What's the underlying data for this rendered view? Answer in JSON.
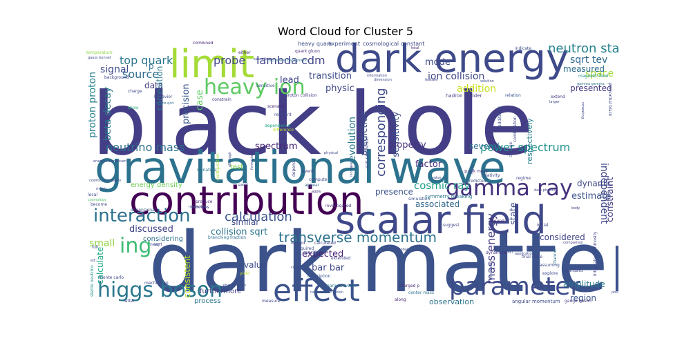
{
  "title": "Word Cloud for Cluster 5",
  "words": [
    {
      "text": "black hole",
      "color": "#433e85"
    },
    {
      "text": "dark matter",
      "color": "#3b528b"
    },
    {
      "text": "gravitational wave",
      "color": "#2c728e"
    },
    {
      "text": "dark energy",
      "color": "#3e4a89"
    },
    {
      "text": "contribution",
      "color": "#440154"
    },
    {
      "text": "scalar field",
      "color": "#3f4889"
    },
    {
      "text": "limit",
      "color": "#a5db36"
    },
    {
      "text": "effect",
      "color": "#3b528b"
    },
    {
      "text": "parameter",
      "color": "#3e4c8a"
    },
    {
      "text": "gamma ray",
      "color": "#46327e"
    },
    {
      "text": "higgs boson",
      "color": "#2a788e"
    },
    {
      "text": "heavy ion",
      "color": "#5ec962"
    },
    {
      "text": "interaction",
      "color": "#2c718e"
    },
    {
      "text": "ing",
      "color": "#3dbc74"
    },
    {
      "text": "corresponding",
      "color": "#3e4989"
    },
    {
      "text": "neutron star",
      "color": "#26828e"
    },
    {
      "text": "transverse momentum",
      "color": "#2c728e"
    },
    {
      "text": "calculation",
      "color": "#3a548c"
    },
    {
      "text": "lambda cdm",
      "color": "#404688"
    },
    {
      "text": "top quark",
      "color": "#2a768e"
    },
    {
      "text": "probe",
      "color": "#404588"
    },
    {
      "text": "source",
      "color": "#2f6c8e"
    },
    {
      "text": "mass energy",
      "color": "#433d84"
    },
    {
      "text": "neutrino mass",
      "color": "#2d708e"
    },
    {
      "text": "power spectrum",
      "color": "#20928c"
    },
    {
      "text": "cosmic ray",
      "color": "#1f9e89"
    },
    {
      "text": "signal",
      "color": "#3e4c8a"
    },
    {
      "text": "proton proton",
      "color": "#26828e"
    },
    {
      "text": "beta decay",
      "color": "#2a778e"
    },
    {
      "text": "independent",
      "color": "#3f4788"
    },
    {
      "text": "sqrt tev",
      "color": "#31688e"
    },
    {
      "text": "space",
      "color": "#a0da39"
    },
    {
      "text": "measured",
      "color": "#2e6d8e"
    },
    {
      "text": "ion collision",
      "color": "#3f4788"
    },
    {
      "text": "addition",
      "color": "#c8e020"
    },
    {
      "text": "presented",
      "color": "#453781"
    },
    {
      "text": "sensitivity",
      "color": "#3c508b"
    },
    {
      "text": "prediction",
      "color": "#3b518b"
    },
    {
      "text": "evolution",
      "color": "#29798e"
    },
    {
      "text": "transition",
      "color": "#3e4c8a"
    },
    {
      "text": "physic",
      "color": "#3e4989"
    },
    {
      "text": "lead",
      "color": "#414487"
    },
    {
      "text": "mode",
      "color": "#3f4889"
    },
    {
      "text": "p",
      "color": "#2d708e"
    },
    {
      "text": "data",
      "color": "#433e85"
    },
    {
      "text": "precision",
      "color": "#38598c"
    },
    {
      "text": "case",
      "color": "#5ec962"
    },
    {
      "text": "correlation",
      "color": "#2a788e"
    },
    {
      "text": "state",
      "color": "#3e4c8a"
    },
    {
      "text": "respectively",
      "color": "#27808e"
    },
    {
      "text": "constraint",
      "color": "#433d84"
    },
    {
      "text": "estimate",
      "color": "#3b528b"
    },
    {
      "text": "dynamic",
      "color": "#3e4a89"
    },
    {
      "text": "factor",
      "color": "#472d7b"
    },
    {
      "text": "property",
      "color": "#46327e"
    },
    {
      "text": "several",
      "color": "#2d718e"
    },
    {
      "text": "spectrum",
      "color": "#482878"
    },
    {
      "text": "presence",
      "color": "#3a538b"
    },
    {
      "text": "associated",
      "color": "#31688e"
    },
    {
      "text": "collision sqrt",
      "color": "#2c738e"
    },
    {
      "text": "similar",
      "color": "#3e4a89"
    },
    {
      "text": "discussed",
      "color": "#414287"
    },
    {
      "text": "small",
      "color": "#90d743"
    },
    {
      "text": "calculate",
      "color": "#22a884"
    },
    {
      "text": "consistent",
      "color": "#bddf26"
    },
    {
      "text": "expected",
      "color": "#482173"
    },
    {
      "text": "bar bar",
      "color": "#3f4788"
    },
    {
      "text": "value",
      "color": "#3e4989"
    },
    {
      "text": "considered",
      "color": "#414487"
    },
    {
      "text": "amplitude",
      "color": "#2a788e"
    },
    {
      "text": "region",
      "color": "#3a548c"
    },
    {
      "text": "observation",
      "color": "#2c728e"
    },
    {
      "text": "furthermore",
      "color": "#433e85"
    },
    {
      "text": "process",
      "color": "#2a788e"
    },
    {
      "text": "considering",
      "color": "#2e6f8e"
    },
    {
      "text": "energy density",
      "color": "#6ece58"
    },
    {
      "text": "test",
      "color": "#84d44b"
    },
    {
      "text": "combined",
      "color": "#482475"
    },
    {
      "text": "heavy quark",
      "color": "#3c508b"
    },
    {
      "text": "experiment",
      "color": "#3e4c8a"
    },
    {
      "text": "cosmological constant",
      "color": "#3f4889"
    },
    {
      "text": "total",
      "color": "#482878"
    },
    {
      "text": "indicate",
      "color": "#3b528b"
    },
    {
      "text": "quark gluon",
      "color": "#472d7b"
    },
    {
      "text": "temperature",
      "color": "#8fd744"
    },
    {
      "text": "gauss bonnet",
      "color": "#3e4a89"
    },
    {
      "text": "background",
      "color": "#404688"
    },
    {
      "text": "charge",
      "color": "#3f4788"
    },
    {
      "text": "show",
      "color": "#35b779"
    },
    {
      "text": "behavior",
      "color": "#3e4989"
    },
    {
      "text": "lattice qcd",
      "color": "#2e6e8e"
    },
    {
      "text": "microwave background",
      "color": "#2d718e"
    },
    {
      "text": "sensitive",
      "color": "#3b528b"
    },
    {
      "text": "constrain",
      "color": "#453781"
    },
    {
      "text": "scenario",
      "color": "#482677"
    },
    {
      "text": "relevant",
      "color": "#3f4788"
    },
    {
      "text": "dependence",
      "color": "#20a386"
    },
    {
      "text": "difference",
      "color": "#bddf26"
    },
    {
      "text": "hadron collider",
      "color": "#443983"
    },
    {
      "text": "relation",
      "color": "#3a548c"
    },
    {
      "text": "extend",
      "color": "#433e85"
    },
    {
      "text": "solution",
      "color": "#3e4c8a"
    },
    {
      "text": "feature",
      "color": "#404588"
    },
    {
      "text": "magnetic field",
      "color": "#21918c"
    },
    {
      "text": "gamma gamma",
      "color": "#2c738e"
    },
    {
      "text": "signature",
      "color": "#2c728e"
    },
    {
      "text": "event",
      "color": "#443a83"
    },
    {
      "text": "compute",
      "color": "#3e4a89"
    },
    {
      "text": "appear",
      "color": "#31688e"
    },
    {
      "text": "quark mass",
      "color": "#46327e"
    },
    {
      "text": "predicted",
      "color": "#3b528b"
    },
    {
      "text": "produce",
      "color": "#482878"
    },
    {
      "text": "provides",
      "color": "#3f4788"
    },
    {
      "text": "investigated",
      "color": "#46327e"
    },
    {
      "text": "simulation",
      "color": "#3b528b"
    },
    {
      "text": "symmetry breaking",
      "color": "#2a788e"
    },
    {
      "text": "initial",
      "color": "#404688"
    },
    {
      "text": "local",
      "color": "#3f4788"
    },
    {
      "text": "cosmology",
      "color": "#4ac16d"
    },
    {
      "text": "become",
      "color": "#3e4a89"
    },
    {
      "text": "dimensional",
      "color": "#3a548c"
    },
    {
      "text": "relativistic",
      "color": "#3f4788"
    },
    {
      "text": "deined",
      "color": "#414487"
    },
    {
      "text": "required",
      "color": "#3e4c8a"
    },
    {
      "text": "suggest",
      "color": "#3f4788"
    },
    {
      "text": "bound",
      "color": "#482475"
    },
    {
      "text": "full",
      "color": "#3e4a89"
    },
    {
      "text": "near",
      "color": "#3a548c"
    },
    {
      "text": "calculated",
      "color": "#404588"
    },
    {
      "text": "branching fraction",
      "color": "#2e6d8e"
    },
    {
      "text": "specific",
      "color": "#3e4989"
    },
    {
      "text": "extended",
      "color": "#3f4788"
    },
    {
      "text": "dynamical",
      "color": "#46327e"
    },
    {
      "text": "final state",
      "color": "#404588"
    },
    {
      "text": "assuming",
      "color": "#3e4c8a"
    },
    {
      "text": "explore",
      "color": "#3e4a89"
    },
    {
      "text": "monte carlo",
      "color": "#3e4989"
    },
    {
      "text": "mechanism",
      "color": "#3f4788"
    },
    {
      "text": "description",
      "color": "#3a548c"
    },
    {
      "text": "early universe",
      "color": "#2a788e"
    },
    {
      "text": "charged p",
      "color": "#472d7b"
    },
    {
      "text": "center mass",
      "color": "#2c728e"
    },
    {
      "text": "along",
      "color": "#482878"
    },
    {
      "text": "measure",
      "color": "#3f4788"
    },
    {
      "text": "angular momentum",
      "color": "#3e4c8a"
    },
    {
      "text": "gauge boson",
      "color": "#443983"
    },
    {
      "text": "channel",
      "color": "#2c738e"
    },
    {
      "text": "standard",
      "color": "#3f4788"
    },
    {
      "text": "integrated luminosity",
      "color": "#414487"
    },
    {
      "text": "possibility",
      "color": "#3e4a89"
    },
    {
      "text": "latter",
      "color": "#3f4788"
    },
    {
      "text": "yield",
      "color": "#bddf26"
    },
    {
      "text": "size",
      "color": "#3e4989"
    },
    {
      "text": "sterile neutrino",
      "color": "#21918c"
    },
    {
      "text": "global",
      "color": "#3e4989"
    },
    {
      "text": "phenomenon",
      "color": "#3f4788"
    },
    {
      "text": "neutrino oscillation",
      "color": "#3a548c"
    },
    {
      "text": "comparison",
      "color": "#433e85"
    },
    {
      "text": "exist",
      "color": "#3e4a89"
    },
    {
      "text": "configuration",
      "color": "#9fda3a"
    },
    {
      "text": "depend",
      "color": "#3f4788"
    },
    {
      "text": "apply",
      "color": "#472d7b"
    },
    {
      "text": "focus",
      "color": "#3a548c"
    },
    {
      "text": "relativity",
      "color": "#3e4c8a"
    },
    {
      "text": "change",
      "color": "#3f4788"
    },
    {
      "text": "combination",
      "color": "#404588"
    },
    {
      "text": "additional",
      "color": "#3e4989"
    },
    {
      "text": "regime",
      "color": "#3f4788"
    },
    {
      "text": "although",
      "color": "#3e4a89"
    },
    {
      "text": "formation",
      "color": "#3f4788"
    },
    {
      "text": "increase",
      "color": "#3f4788"
    },
    {
      "text": "pair production",
      "color": "#3e4a89"
    },
    {
      "text": "either",
      "color": "#482878"
    },
    {
      "text": "spacetime",
      "color": "#3f4788"
    },
    {
      "text": "dimension",
      "color": "#3e4989"
    },
    {
      "text": "information",
      "color": "#3f4788"
    },
    {
      "text": "proton collision",
      "color": "#433e85"
    },
    {
      "text": "larger",
      "color": "#3e4a89"
    },
    {
      "text": "body",
      "color": "#3f4788"
    },
    {
      "text": "metric",
      "color": "#3e4c8a"
    },
    {
      "text": "physical",
      "color": "#3f4788"
    },
    {
      "text": "value",
      "color": "#3e4989"
    },
    {
      "text": "uncertainty",
      "color": "#3f4788"
    },
    {
      "text": "predict",
      "color": "#3e4a89"
    },
    {
      "text": "application",
      "color": "#3f4788"
    },
    {
      "text": "energy momentum",
      "color": "#3e4989"
    },
    {
      "text": "cosmic microwave",
      "color": "#3f4788"
    },
    {
      "text": "primordial black",
      "color": "#3e4a89"
    },
    {
      "text": "reheating",
      "color": "#3f4788"
    },
    {
      "text": "ed",
      "color": "#3e4989"
    },
    {
      "text": "sqrt",
      "color": "#3f4788"
    },
    {
      "text": "collision",
      "color": "#3e4a89"
    },
    {
      "text": "dark photon",
      "color": "#3f4788"
    }
  ]
}
